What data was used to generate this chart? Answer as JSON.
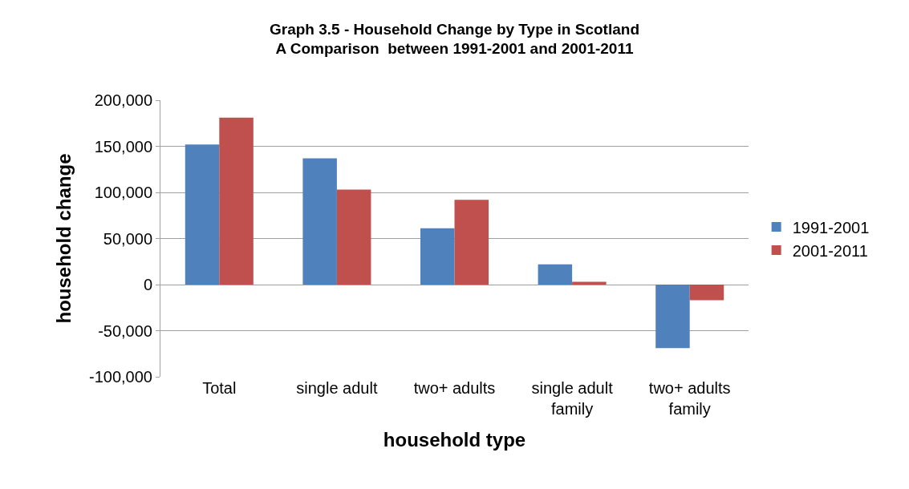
{
  "chart_data": {
    "type": "bar",
    "title": "Graph 3.5 - Household Change by Type in Scotland\nA Comparison  between 1991-2001 and 2001-2011",
    "xlabel": "household type",
    "ylabel": "household change",
    "categories": [
      "Total",
      "single adult",
      "two+ adults",
      "single adult\nfamily",
      "two+ adults\nfamily"
    ],
    "series": [
      {
        "name": "1991-2001",
        "color": "#4f81bd",
        "values": [
          152000,
          137000,
          61000,
          22000,
          -69000
        ]
      },
      {
        "name": "2001-2011",
        "color": "#c0504d",
        "values": [
          181000,
          103000,
          92000,
          3000,
          -17000
        ]
      }
    ],
    "ylim": [
      -100000,
      200000
    ],
    "yticks": [
      {
        "value": -100000,
        "label": "-100,000"
      },
      {
        "value": -50000,
        "label": "-50,000"
      },
      {
        "value": 0,
        "label": "0"
      },
      {
        "value": 50000,
        "label": "50,000"
      },
      {
        "value": 100000,
        "label": "100,000"
      },
      {
        "value": 150000,
        "label": "150,000"
      },
      {
        "value": 200000,
        "label": "200,000"
      }
    ],
    "grid": "y",
    "legend": "right"
  }
}
